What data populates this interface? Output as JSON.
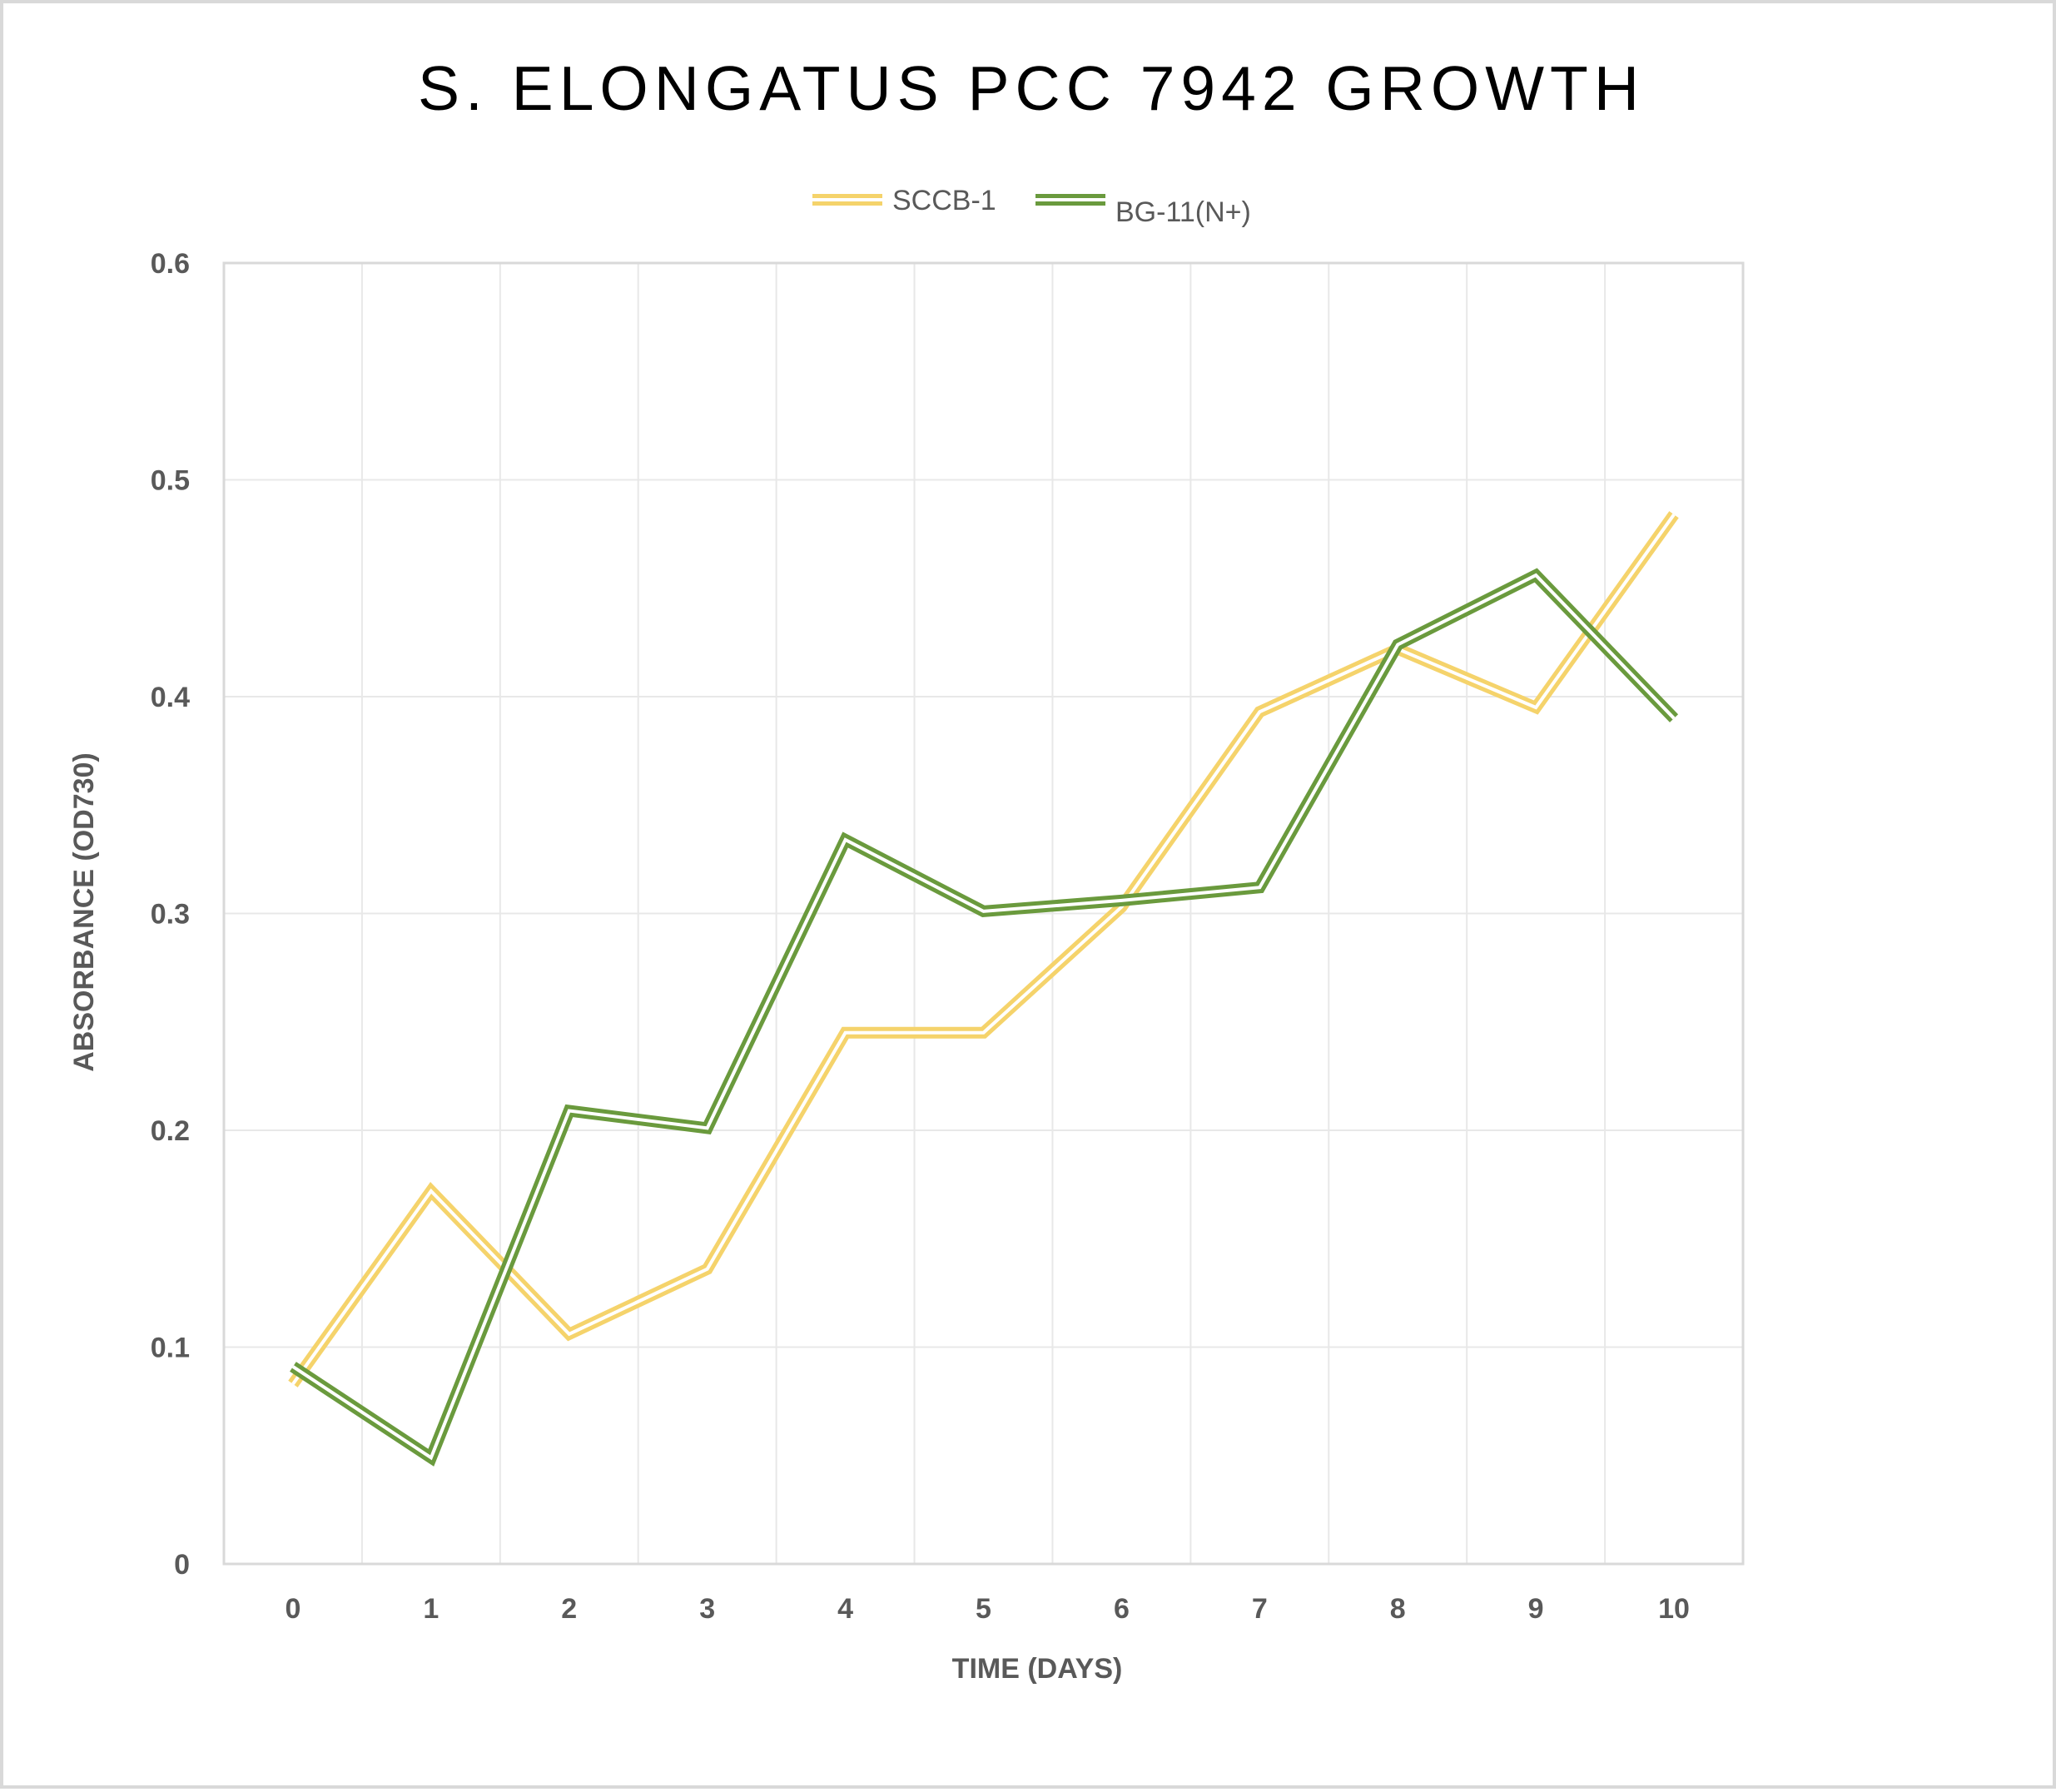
{
  "chart_data": {
    "type": "line",
    "title": "S. ELONGATUS PCC 7942 GROWTH",
    "xlabel": "TIME (DAYS)",
    "ylabel": "ABSORBANCE (OD730)",
    "x": [
      0,
      1,
      2,
      3,
      4,
      5,
      6,
      7,
      8,
      9,
      10
    ],
    "x_tick_labels": [
      "0",
      "1",
      "2",
      "3",
      "4",
      "5",
      "6",
      "7",
      "8",
      "9",
      "10"
    ],
    "y_tick_labels": [
      "0",
      "0.1",
      "0.2",
      "0.3",
      "0.4",
      "0.5",
      "0.6"
    ],
    "ylim": [
      0,
      0.6
    ],
    "xlim": [
      -0.5,
      10.5
    ],
    "grid": true,
    "legend_position": "top",
    "series": [
      {
        "name": "SCCB-1",
        "color": "#f5d36b",
        "values": [
          0.083,
          0.172,
          0.106,
          0.136,
          0.245,
          0.245,
          0.303,
          0.393,
          0.422,
          0.395,
          0.484
        ]
      },
      {
        "name": "BG-11(N+)",
        "color": "#6a9a3d",
        "values": [
          0.091,
          0.049,
          0.209,
          0.201,
          0.334,
          0.301,
          0.306,
          0.312,
          0.424,
          0.456,
          0.39
        ]
      }
    ]
  }
}
